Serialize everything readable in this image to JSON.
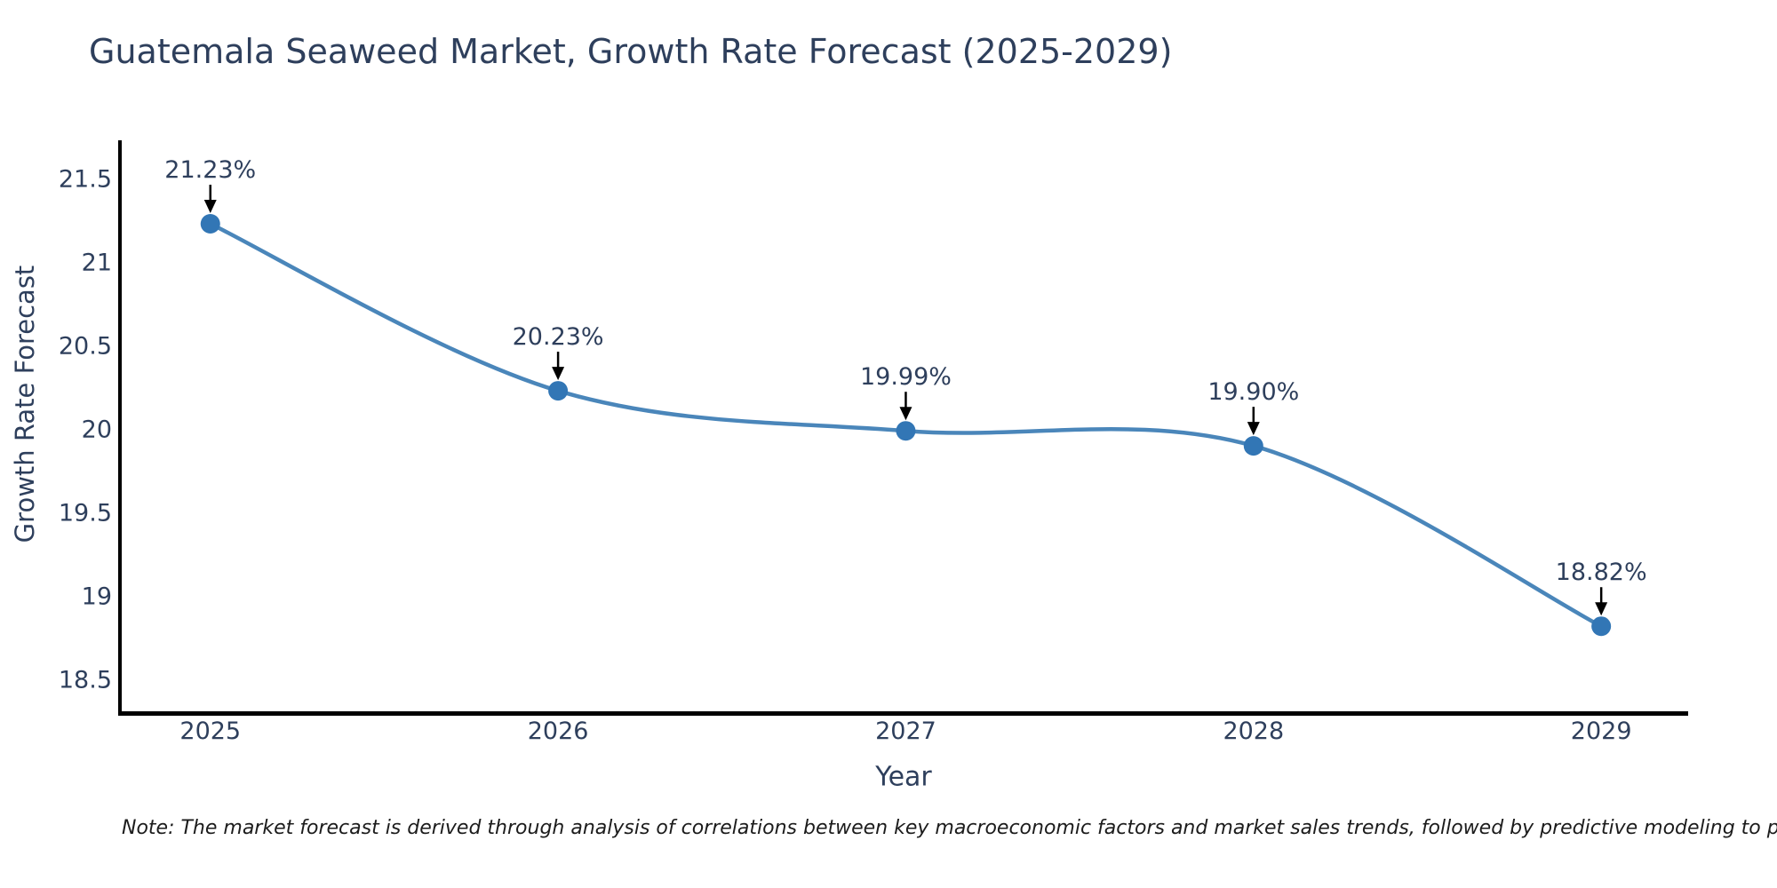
{
  "title": "Guatemala Seaweed Market, Growth Rate Forecast (2025-2029)",
  "note": "Note: The market forecast is derived through analysis of correlations between key macroeconomic factors and market sales trends, followed by predictive modeling to project future sal",
  "chart_data": {
    "type": "line",
    "title": "Guatemala Seaweed Market, Growth Rate Forecast (2025-2029)",
    "xlabel": "Year",
    "ylabel": "Growth Rate Forecast",
    "x": [
      2025,
      2026,
      2027,
      2028,
      2029
    ],
    "values": [
      21.23,
      20.23,
      19.99,
      19.9,
      18.82
    ],
    "point_labels": [
      "21.23%",
      "20.23%",
      "19.99%",
      "19.90%",
      "18.82%"
    ],
    "xticklabels": [
      "2025",
      "2026",
      "2027",
      "2028",
      "2029"
    ],
    "yticks": [
      18.5,
      19,
      19.5,
      20,
      20.5,
      21,
      21.5
    ],
    "xlim": [
      2024.74,
      2029.25
    ],
    "ylim": [
      18.3,
      21.73
    ],
    "grid": false,
    "legend": false,
    "smooth": true,
    "line_color": "#4a86ba",
    "marker_color": "#3276b5",
    "text_color": "#2e3f5c",
    "axis_color": "#000000",
    "arrow_color": "#000000"
  }
}
